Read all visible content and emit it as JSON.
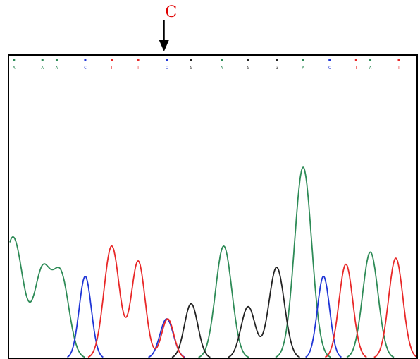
{
  "chart_data": {
    "type": "line",
    "title": "",
    "xlabel": "",
    "ylabel": "",
    "xlim": [
      0,
      20
    ],
    "ylim": [
      0,
      100
    ],
    "grid": false,
    "legend": "none",
    "base_calls": [
      {
        "base": "A",
        "x": 0.2
      },
      {
        "base": "A",
        "x": 1.6
      },
      {
        "base": "A",
        "x": 2.3
      },
      {
        "base": "C",
        "x": 3.7
      },
      {
        "base": "T",
        "x": 5.0
      },
      {
        "base": "T",
        "x": 6.3
      },
      {
        "base": "C",
        "x": 7.7
      },
      {
        "base": "G",
        "x": 8.9
      },
      {
        "base": "A",
        "x": 10.4
      },
      {
        "base": "G",
        "x": 11.7
      },
      {
        "base": "G",
        "x": 13.1
      },
      {
        "base": "A",
        "x": 14.4
      },
      {
        "base": "C",
        "x": 15.7
      },
      {
        "base": "T",
        "x": 17.0
      },
      {
        "base": "A",
        "x": 17.7
      },
      {
        "base": "T",
        "x": 19.1
      }
    ],
    "series": [
      {
        "base": "A",
        "color": "#2e8b57",
        "peaks": [
          {
            "x": 0.15,
            "h": 40,
            "w": 0.5
          },
          {
            "x": 1.6,
            "h": 28,
            "w": 0.4
          },
          {
            "x": 2.5,
            "h": 27,
            "w": 0.4
          },
          {
            "x": 10.5,
            "h": 37,
            "w": 0.4
          },
          {
            "x": 14.4,
            "h": 63,
            "w": 0.42
          },
          {
            "x": 17.7,
            "h": 35,
            "w": 0.38
          }
        ]
      },
      {
        "base": "C",
        "color": "#1f35d6",
        "peaks": [
          {
            "x": 3.7,
            "h": 27,
            "w": 0.3
          },
          {
            "x": 7.7,
            "h": 13,
            "w": 0.33
          },
          {
            "x": 15.4,
            "h": 27,
            "w": 0.3
          }
        ]
      },
      {
        "base": "G",
        "color": "#222222",
        "peaks": [
          {
            "x": 8.9,
            "h": 18,
            "w": 0.33
          },
          {
            "x": 11.7,
            "h": 17,
            "w": 0.35
          },
          {
            "x": 13.1,
            "h": 30,
            "w": 0.38
          }
        ]
      },
      {
        "base": "T",
        "color": "#e82828",
        "peaks": [
          {
            "x": 5.0,
            "h": 37,
            "w": 0.38
          },
          {
            "x": 6.3,
            "h": 32,
            "w": 0.34
          },
          {
            "x": 7.75,
            "h": 13,
            "w": 0.3
          },
          {
            "x": 16.5,
            "h": 31,
            "w": 0.34
          },
          {
            "x": 18.95,
            "h": 33,
            "w": 0.35
          }
        ]
      }
    ],
    "annotations": [
      {
        "text": "C",
        "x": 7.5,
        "color": "#e00000"
      }
    ]
  }
}
